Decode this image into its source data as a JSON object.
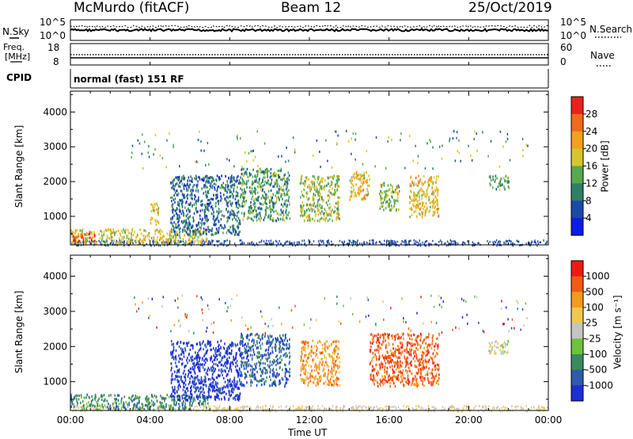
{
  "header": {
    "station": "McMurdo (fitACF)",
    "beam": "Beam 12",
    "date": "25/Oct/2019"
  },
  "noise_panel": {
    "left_label": "N.Sky",
    "left_ticks": [
      "10^5",
      "10^0"
    ],
    "right_label": "N.Search",
    "right_ticks": [
      "10^5",
      "10^0"
    ]
  },
  "freq_panel": {
    "left_label_1": "Freq.",
    "left_label_2": "[MHz]",
    "left_ticks": [
      "18",
      "8"
    ],
    "right_label": "Nave",
    "right_ticks": [
      "60",
      "0"
    ]
  },
  "cpid_panel": {
    "label": "CPID",
    "value": "normal (fast) 151 RF"
  },
  "chart_data": [
    {
      "type": "heatmap",
      "title": "",
      "xlabel": "Time UT",
      "ylabel": "Slant Range [km]",
      "x_ticks": [
        "00:00",
        "04:00",
        "08:00",
        "12:00",
        "16:00",
        "20:00",
        "00:00"
      ],
      "xlim_hours": [
        0,
        24
      ],
      "y_ticks": [
        1000,
        2000,
        3000,
        4000
      ],
      "ylim": [
        180,
        4600
      ],
      "colorbar": {
        "label": "Power [dB]",
        "ticks": [
          "4",
          "8",
          "12",
          "16",
          "20",
          "24",
          "28"
        ],
        "range": [
          0,
          30
        ],
        "colors": [
          "#0a1de8",
          "#1a49a8",
          "#2e7f6a",
          "#58a94a",
          "#d6c52b",
          "#f4a01c",
          "#f06a17",
          "#e8221a"
        ]
      },
      "features": [
        {
          "t": [
            0.0,
            6.9
          ],
          "range": [
            230,
            660
          ],
          "level": 16
        },
        {
          "t": [
            0.1,
            1.2
          ],
          "range": [
            300,
            560
          ],
          "level": 26
        },
        {
          "t": [
            4.0,
            4.4
          ],
          "range": [
            800,
            1400
          ],
          "level": 18
        },
        {
          "t": [
            5.0,
            8.5
          ],
          "range": [
            500,
            2200
          ],
          "level": 6
        },
        {
          "t": [
            8.5,
            11.0
          ],
          "range": [
            900,
            2400
          ],
          "level": 10
        },
        {
          "t": [
            11.5,
            13.5
          ],
          "range": [
            900,
            2200
          ],
          "level": 14
        },
        {
          "t": [
            14.0,
            15.0
          ],
          "range": [
            1500,
            2300
          ],
          "level": 18
        },
        {
          "t": [
            15.5,
            16.5
          ],
          "range": [
            1200,
            2000
          ],
          "level": 14
        },
        {
          "t": [
            17.0,
            18.5
          ],
          "range": [
            1000,
            2200
          ],
          "level": 18
        },
        {
          "t": [
            21.0,
            22.0
          ],
          "range": [
            1800,
            2200
          ],
          "level": 10
        }
      ]
    },
    {
      "type": "heatmap",
      "title": "",
      "xlabel": "Time UT",
      "ylabel": "Slant Range [km]",
      "x_ticks": [
        "00:00",
        "04:00",
        "08:00",
        "12:00",
        "16:00",
        "20:00",
        "00:00"
      ],
      "xlim_hours": [
        0,
        24
      ],
      "y_ticks": [
        1000,
        2000,
        3000,
        4000
      ],
      "ylim": [
        180,
        4600
      ],
      "colorbar": {
        "label": "Velocity [m s⁻¹]",
        "ticks": [
          "1000",
          "500",
          "100",
          "25",
          "-25",
          "-100",
          "-500",
          "-1000"
        ],
        "colors": [
          "#1d2ed6",
          "#2c5cab",
          "#3a8a5e",
          "#6fc23c",
          "#c4c4c4",
          "#f0c84a",
          "#f49a1c",
          "#f45a12",
          "#ee1a12"
        ]
      },
      "features": [
        {
          "t": [
            0.0,
            6.9
          ],
          "range": [
            230,
            660
          ],
          "level": "100"
        },
        {
          "t": [
            5.0,
            8.5
          ],
          "range": [
            500,
            2200
          ],
          "level": "1000"
        },
        {
          "t": [
            8.5,
            11.0
          ],
          "range": [
            900,
            2400
          ],
          "level": "500"
        },
        {
          "t": [
            11.5,
            13.5
          ],
          "range": [
            900,
            2200
          ],
          "level": "-500"
        },
        {
          "t": [
            15.0,
            18.5
          ],
          "range": [
            900,
            2400
          ],
          "level": "-1000"
        },
        {
          "t": [
            21.0,
            22.0
          ],
          "range": [
            1800,
            2200
          ],
          "level": "-25"
        }
      ]
    }
  ]
}
